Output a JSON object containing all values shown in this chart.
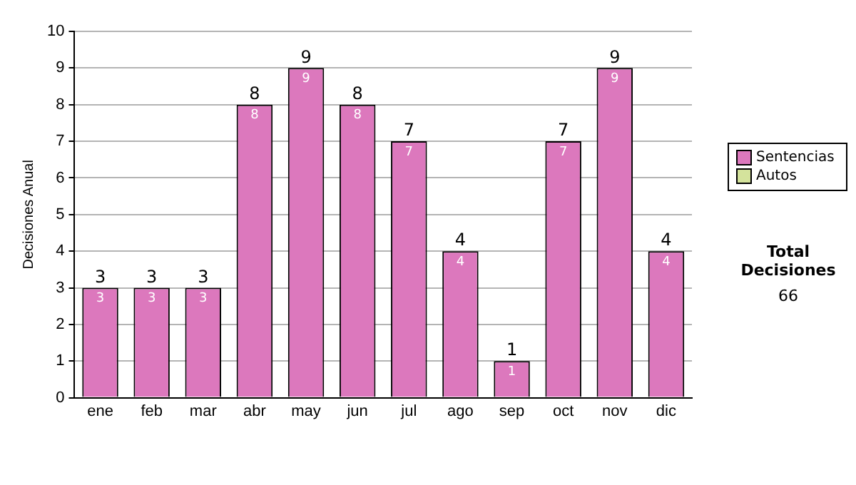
{
  "chart_data": {
    "type": "bar",
    "stacked": true,
    "ylabel": "Decisiones Anual",
    "categories": [
      "ene",
      "feb",
      "mar",
      "abr",
      "may",
      "jun",
      "jul",
      "ago",
      "sep",
      "oct",
      "nov",
      "dic"
    ],
    "series": [
      {
        "name": "Sentencias",
        "color": "#dc78bd",
        "values": [
          3,
          3,
          3,
          8,
          9,
          8,
          7,
          4,
          1,
          7,
          9,
          4
        ],
        "value_labels": [
          "3",
          "3",
          "3",
          "8",
          "9",
          "8",
          "7",
          "4",
          "1",
          "7",
          "9",
          "4"
        ]
      },
      {
        "name": "Autos",
        "color": "#d4e39c",
        "values": [
          0,
          0,
          0,
          0,
          0,
          0,
          0,
          0,
          0,
          0,
          0,
          0
        ]
      }
    ],
    "totals": [
      "3",
      "3",
      "3",
      "8",
      "9",
      "8",
      "7",
      "4",
      "1",
      "7",
      "9",
      "4"
    ],
    "ylim": [
      0,
      10
    ],
    "yticks": [
      0,
      1,
      2,
      3,
      4,
      5,
      6,
      7,
      8,
      9,
      10
    ],
    "grid": "y",
    "legend": "right",
    "annotations": [
      "Total Decisiones",
      "66"
    ]
  }
}
